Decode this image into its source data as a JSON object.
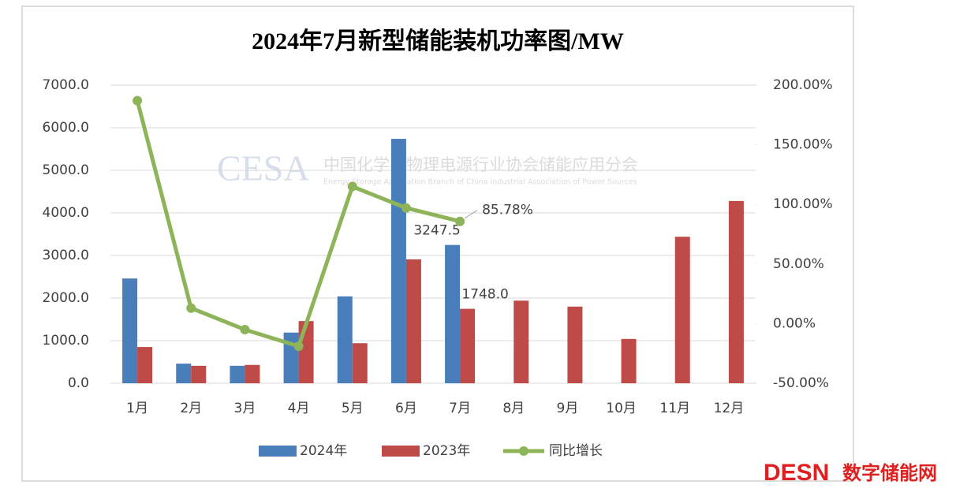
{
  "chart_data": {
    "type": "bar_line",
    "title": "2024年7月新型储能装机功率图/MW",
    "categories": [
      "1月",
      "2月",
      "3月",
      "4月",
      "5月",
      "6月",
      "7月",
      "8月",
      "9月",
      "10月",
      "11月",
      "12月"
    ],
    "series": [
      {
        "name": "2024年",
        "type": "bar",
        "color": "#4a7ebb",
        "values": [
          2460,
          460,
          410,
          1190,
          2040,
          5740,
          3247.5,
          null,
          null,
          null,
          null,
          null
        ],
        "value_labels": [
          null,
          null,
          null,
          null,
          null,
          null,
          "3247.5",
          null,
          null,
          null,
          null,
          null
        ]
      },
      {
        "name": "2023年",
        "type": "bar",
        "color": "#be4b48",
        "values": [
          850,
          410,
          430,
          1460,
          940,
          2910,
          1748,
          1940,
          1800,
          1040,
          3440,
          4280
        ],
        "value_labels": [
          null,
          null,
          null,
          null,
          null,
          null,
          "1748.0",
          null,
          null,
          null,
          null,
          null
        ]
      },
      {
        "name": "同比增长",
        "type": "line",
        "axis": "y2",
        "color": "#8db458",
        "values": [
          187,
          13,
          -5,
          -19,
          115,
          97,
          85.78,
          null,
          null,
          null,
          null,
          null
        ],
        "value_labels": [
          null,
          null,
          null,
          null,
          null,
          null,
          "85.78%",
          null,
          null,
          null,
          null,
          null
        ]
      }
    ],
    "ylim": [
      0,
      7000
    ],
    "yticks": [
      {
        "value": 0,
        "label": "0.0"
      },
      {
        "value": 1000,
        "label": "1000.0"
      },
      {
        "value": 2000,
        "label": "2000.0"
      },
      {
        "value": 3000,
        "label": "3000.0"
      },
      {
        "value": 4000,
        "label": "4000.0"
      },
      {
        "value": 5000,
        "label": "5000.0"
      },
      {
        "value": 6000,
        "label": "6000.0"
      },
      {
        "value": 7000,
        "label": "7000.0"
      }
    ],
    "y2lim": [
      -50,
      200
    ],
    "y2ticks": [
      {
        "value": -50,
        "label": "-50.00%"
      },
      {
        "value": 0,
        "label": "0.00%"
      },
      {
        "value": 50,
        "label": "50.00%"
      },
      {
        "value": 100,
        "label": "100.00%"
      },
      {
        "value": 150,
        "label": "150.00%"
      },
      {
        "value": 200,
        "label": "200.00%"
      }
    ],
    "grid": true,
    "legend": "bottom"
  },
  "watermark": {
    "logo": "CESA",
    "name": "中国化学与物理电源行业协会储能应用分会",
    "subtitle": "Energy Storage Application Branch of China Industrial Association of Power Sources"
  },
  "brand": {
    "logo": "DESN",
    "name": "数字储能网"
  }
}
